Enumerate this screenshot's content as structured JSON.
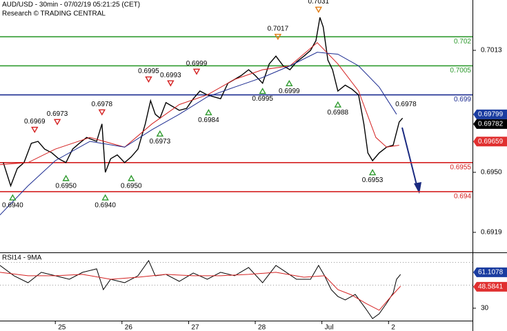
{
  "chart_data": [
    {
      "type": "line",
      "title": "AUD/USD - 30min - 07/02/19 05:21:25 (CET)",
      "subtitle": "Research © TRADING CENTRAL",
      "xlim": [
        0.17,
        7.26
      ],
      "ylim": [
        0.6909,
        0.7039
      ],
      "yticks": [
        0.7013,
        {
          "value": 0.695,
          "label": "0.6950"
        },
        0.6919
      ],
      "series": [
        {
          "color": "#000000",
          "x": [
            0.22,
            0.33,
            0.43,
            0.53,
            0.64,
            0.74,
            0.84,
            0.95,
            1.05,
            1.16,
            1.26,
            1.36,
            1.47,
            1.62,
            1.7,
            1.75,
            1.83,
            1.93,
            2.04,
            2.14,
            2.24,
            2.35,
            2.43,
            2.5,
            2.57,
            2.66,
            2.76,
            2.86,
            2.97,
            3.07,
            3.17,
            3.28,
            3.38,
            3.48,
            3.59,
            3.69,
            3.79,
            3.9,
            4.0,
            4.11,
            4.21,
            4.31,
            4.42,
            4.52,
            4.62,
            4.73,
            4.83,
            4.91,
            4.97,
            5.02,
            5.09,
            5.16,
            5.24,
            5.35,
            5.45,
            5.55,
            5.63,
            5.69,
            5.76,
            5.86,
            5.97,
            6.07,
            6.16,
            6.21
          ],
          "values": [
            0.6955,
            0.6943,
            0.6952,
            0.6955,
            0.6965,
            0.6966,
            0.6962,
            0.696,
            0.6957,
            0.6955,
            0.6962,
            0.6965,
            0.6968,
            0.6966,
            0.6975,
            0.695,
            0.6957,
            0.6959,
            0.6955,
            0.6958,
            0.6962,
            0.6975,
            0.6987,
            0.698,
            0.6978,
            0.6986,
            0.6984,
            0.6982,
            0.6983,
            0.6988,
            0.6992,
            0.699,
            0.6989,
            0.6988,
            0.6996,
            0.6998,
            0.7,
            0.7003,
            0.7,
            0.6996,
            0.7006,
            0.701,
            0.7005,
            0.7003,
            0.7007,
            0.701,
            0.7013,
            0.7018,
            0.703,
            0.7025,
            0.7008,
            0.7003,
            0.6992,
            0.6995,
            0.6993,
            0.699,
            0.6975,
            0.696,
            0.6956,
            0.696,
            0.6963,
            0.6964,
            0.6976,
            0.6978
          ]
        },
        {
          "color": "#d42020",
          "x": [
            0.17,
            0.59,
            1.0,
            1.52,
            2.04,
            2.45,
            2.86,
            3.28,
            3.69,
            4.11,
            4.52,
            4.93,
            5.24,
            5.55,
            5.81,
            5.97,
            6.16
          ],
          "values": [
            0.6954,
            0.6955,
            0.6962,
            0.6968,
            0.6963,
            0.6975,
            0.6985,
            0.699,
            0.6998,
            0.7003,
            0.7005,
            0.7017,
            0.7006,
            0.6992,
            0.6968,
            0.6963,
            0.6964
          ]
        },
        {
          "color": "#1a2a90",
          "x": [
            0.17,
            0.59,
            1.0,
            1.52,
            2.04,
            2.45,
            2.86,
            3.28,
            3.69,
            4.11,
            4.52,
            4.93,
            5.24,
            5.55,
            5.86,
            6.12
          ],
          "values": [
            0.6928,
            0.6943,
            0.6956,
            0.6966,
            0.6963,
            0.6972,
            0.698,
            0.6989,
            0.6994,
            0.6999,
            0.7005,
            0.7012,
            0.7011,
            0.7005,
            0.6994,
            0.698
          ]
        }
      ],
      "levels": [
        {
          "value": 0.702,
          "color": "#2e9a2e"
        },
        {
          "value": 0.7005,
          "color": "#2e9a2e"
        },
        {
          "value": 0.699,
          "color": "#1a2a90"
        },
        {
          "value": 0.6955,
          "color": "#d42020"
        },
        {
          "value": 0.694,
          "color": "#d42020"
        }
      ],
      "pivots": [
        {
          "kind": "low",
          "x": 0.36,
          "value": 0.694,
          "label": "0.6940",
          "color": "#2e9a2e"
        },
        {
          "kind": "high",
          "x": 0.69,
          "value": 0.6969,
          "label": "0.6969",
          "color": "#d42020"
        },
        {
          "kind": "high",
          "x": 1.03,
          "value": 0.6973,
          "label": "0.6973",
          "color": "#d42020"
        },
        {
          "kind": "low",
          "x": 1.16,
          "value": 0.695,
          "label": "0.6950",
          "color": "#2e9a2e"
        },
        {
          "kind": "high",
          "x": 1.7,
          "value": 0.6978,
          "label": "0.6978",
          "color": "#d42020"
        },
        {
          "kind": "low",
          "x": 1.75,
          "value": 0.694,
          "label": "0.6940",
          "color": "#2e9a2e"
        },
        {
          "kind": "low",
          "x": 2.14,
          "value": 0.695,
          "label": "0.6950",
          "color": "#2e9a2e"
        },
        {
          "kind": "high",
          "x": 2.4,
          "value": 0.6995,
          "label": "0.6995",
          "color": "#d42020"
        },
        {
          "kind": "low",
          "x": 2.57,
          "value": 0.6973,
          "label": "0.6973",
          "color": "#2e9a2e"
        },
        {
          "kind": "high",
          "x": 2.73,
          "value": 0.6993,
          "label": "0.6993",
          "color": "#d42020"
        },
        {
          "kind": "high",
          "x": 3.12,
          "value": 0.6999,
          "label": "0.6999",
          "color": "#d42020"
        },
        {
          "kind": "low",
          "x": 3.3,
          "value": 0.6984,
          "label": "0.6984",
          "color": "#2e9a2e"
        },
        {
          "kind": "high",
          "x": 4.34,
          "value": 0.7017,
          "label": "0.7017",
          "color": "#e07a10"
        },
        {
          "kind": "low",
          "x": 4.11,
          "value": 0.6995,
          "label": "0.6995",
          "color": "#2e9a2e"
        },
        {
          "kind": "low",
          "x": 4.51,
          "value": 0.6999,
          "label": "0.6999",
          "color": "#2e9a2e"
        },
        {
          "kind": "high",
          "x": 4.95,
          "value": 0.7031,
          "label": "0.7031",
          "color": "#e07a10"
        },
        {
          "kind": "low",
          "x": 5.24,
          "value": 0.6988,
          "label": "0.6988",
          "color": "#2e9a2e"
        },
        {
          "kind": "low",
          "x": 5.76,
          "value": 0.6953,
          "label": "0.6953",
          "color": "#2e9a2e"
        },
        {
          "kind": "high",
          "x": 6.26,
          "value": 0.6978,
          "label": "0.6978",
          "color": "#ffffff"
        }
      ],
      "price_markers": [
        {
          "value": 0.69799,
          "color": "#1a3ca0"
        },
        {
          "value": 0.69782,
          "color": "#000000"
        },
        {
          "value": 0.69659,
          "color": "#e03030"
        }
      ]
    },
    {
      "type": "line",
      "title": "RSI14 - 9MA",
      "xlim": [
        0.17,
        7.26
      ],
      "ylim": [
        19.2,
        77.8
      ],
      "yticks": [
        30
      ],
      "guides": [
        50,
        70
      ],
      "xticks": [
        {
          "value": 1,
          "label": "25"
        },
        {
          "value": 2,
          "label": "26"
        },
        {
          "value": 3,
          "label": "27"
        },
        {
          "value": 4,
          "label": "28"
        },
        {
          "value": 5,
          "label": "Jul"
        },
        {
          "value": 6,
          "label": "2"
        }
      ],
      "series": [
        {
          "color": "#000000",
          "x": [
            0.17,
            0.38,
            0.59,
            0.79,
            1.0,
            1.21,
            1.41,
            1.62,
            1.72,
            1.83,
            2.04,
            2.24,
            2.4,
            2.5,
            2.66,
            2.86,
            3.07,
            3.28,
            3.48,
            3.69,
            3.9,
            4.11,
            4.31,
            4.42,
            4.62,
            4.83,
            4.95,
            5.04,
            5.14,
            5.24,
            5.35,
            5.5,
            5.66,
            5.76,
            5.86,
            5.97,
            6.07,
            6.12,
            6.18
          ],
          "values": [
            67.1,
            58.1,
            52.1,
            61.1,
            58.1,
            55.1,
            61.1,
            64.1,
            46.1,
            55.1,
            52.1,
            58.1,
            71.3,
            58.1,
            59.3,
            53.3,
            60.5,
            55.1,
            61.1,
            58.1,
            65.3,
            52.1,
            67.1,
            62.9,
            55.1,
            55.1,
            67.1,
            58.1,
            46.1,
            40.2,
            37.2,
            42.0,
            29.4,
            21.0,
            25.2,
            34.2,
            43.2,
            55.1,
            59.3
          ]
        },
        {
          "color": "#d42020",
          "x": [
            0.17,
            0.59,
            1.0,
            1.41,
            1.83,
            2.24,
            2.66,
            3.07,
            3.48,
            3.9,
            4.31,
            4.73,
            5.04,
            5.24,
            5.45,
            5.66,
            5.86,
            6.02,
            6.18
          ],
          "values": [
            61.1,
            58.1,
            58.1,
            59.3,
            55.1,
            56.9,
            59.3,
            58.1,
            58.1,
            59.3,
            61.1,
            56.9,
            58.1,
            46.1,
            41.4,
            34.2,
            28.2,
            39.0,
            49.1
          ]
        }
      ],
      "price_markers": [
        {
          "value": 61.1078,
          "color": "#1a3ca0"
        },
        {
          "value": 48.5841,
          "color": "#e03030"
        }
      ]
    }
  ]
}
